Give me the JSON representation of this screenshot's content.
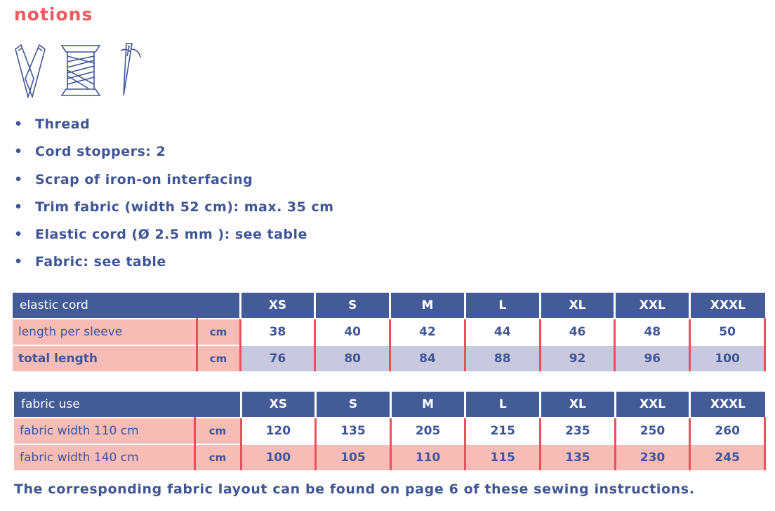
{
  "title": "notions",
  "icons": [
    "scissors-icon",
    "thread-spool-icon",
    "needle-icon"
  ],
  "items": [
    "Thread",
    "Cord stoppers: 2",
    "Scrap of iron-on interfacing",
    "Trim fabric (width 52 cm): max. 35 cm",
    "Elastic cord (Ø 2.5 mm ): see table",
    "Fabric: see table"
  ],
  "bullet": "•",
  "sizes": [
    "XS",
    "S",
    "M",
    "L",
    "XL",
    "XXL",
    "XXXL"
  ],
  "elastic": {
    "header": "elastic cord",
    "rows": [
      {
        "label": "length per sleeve",
        "unit": "cm",
        "values": [
          "38",
          "40",
          "42",
          "44",
          "46",
          "48",
          "50"
        ]
      },
      {
        "label": "total length",
        "unit": "cm",
        "values": [
          "76",
          "80",
          "84",
          "88",
          "92",
          "96",
          "100"
        ]
      }
    ]
  },
  "fabric": {
    "header": "fabric use",
    "rows": [
      {
        "label": "fabric width 110 cm",
        "unit": "cm",
        "values": [
          "120",
          "135",
          "205",
          "215",
          "235",
          "250",
          "260"
        ]
      },
      {
        "label": "fabric width 140 cm",
        "unit": "cm",
        "values": [
          "100",
          "105",
          "110",
          "115",
          "135",
          "230",
          "245"
        ]
      }
    ]
  },
  "footer": "The corresponding fabric layout can be found on page 6 of these sewing instructions.",
  "colors": {
    "title": "#ee5a5f",
    "header": "#435c97",
    "pink": "#f7bcb6",
    "lavender": "#c8c9df",
    "divider": "#e8505b",
    "text": "#3f5596"
  }
}
